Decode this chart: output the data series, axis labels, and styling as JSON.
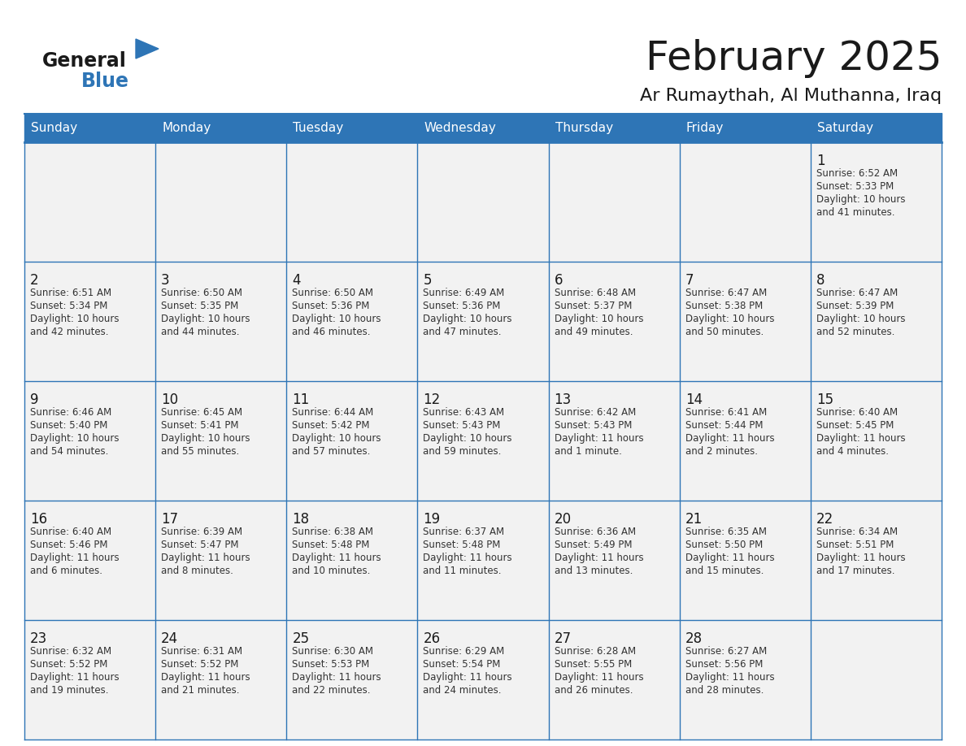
{
  "title": "February 2025",
  "subtitle": "Ar Rumaythah, Al Muthanna, Iraq",
  "header_bg": "#2E75B6",
  "header_text": "#FFFFFF",
  "cell_bg": "#F2F2F2",
  "day_headers": [
    "Sunday",
    "Monday",
    "Tuesday",
    "Wednesday",
    "Thursday",
    "Friday",
    "Saturday"
  ],
  "days": [
    {
      "day": 1,
      "col": 6,
      "row": 0,
      "sunrise": "6:52 AM",
      "sunset": "5:33 PM",
      "daylight": "10 hours and 41 minutes."
    },
    {
      "day": 2,
      "col": 0,
      "row": 1,
      "sunrise": "6:51 AM",
      "sunset": "5:34 PM",
      "daylight": "10 hours and 42 minutes."
    },
    {
      "day": 3,
      "col": 1,
      "row": 1,
      "sunrise": "6:50 AM",
      "sunset": "5:35 PM",
      "daylight": "10 hours and 44 minutes."
    },
    {
      "day": 4,
      "col": 2,
      "row": 1,
      "sunrise": "6:50 AM",
      "sunset": "5:36 PM",
      "daylight": "10 hours and 46 minutes."
    },
    {
      "day": 5,
      "col": 3,
      "row": 1,
      "sunrise": "6:49 AM",
      "sunset": "5:36 PM",
      "daylight": "10 hours and 47 minutes."
    },
    {
      "day": 6,
      "col": 4,
      "row": 1,
      "sunrise": "6:48 AM",
      "sunset": "5:37 PM",
      "daylight": "10 hours and 49 minutes."
    },
    {
      "day": 7,
      "col": 5,
      "row": 1,
      "sunrise": "6:47 AM",
      "sunset": "5:38 PM",
      "daylight": "10 hours and 50 minutes."
    },
    {
      "day": 8,
      "col": 6,
      "row": 1,
      "sunrise": "6:47 AM",
      "sunset": "5:39 PM",
      "daylight": "10 hours and 52 minutes."
    },
    {
      "day": 9,
      "col": 0,
      "row": 2,
      "sunrise": "6:46 AM",
      "sunset": "5:40 PM",
      "daylight": "10 hours and 54 minutes."
    },
    {
      "day": 10,
      "col": 1,
      "row": 2,
      "sunrise": "6:45 AM",
      "sunset": "5:41 PM",
      "daylight": "10 hours and 55 minutes."
    },
    {
      "day": 11,
      "col": 2,
      "row": 2,
      "sunrise": "6:44 AM",
      "sunset": "5:42 PM",
      "daylight": "10 hours and 57 minutes."
    },
    {
      "day": 12,
      "col": 3,
      "row": 2,
      "sunrise": "6:43 AM",
      "sunset": "5:43 PM",
      "daylight": "10 hours and 59 minutes."
    },
    {
      "day": 13,
      "col": 4,
      "row": 2,
      "sunrise": "6:42 AM",
      "sunset": "5:43 PM",
      "daylight": "11 hours and 1 minute."
    },
    {
      "day": 14,
      "col": 5,
      "row": 2,
      "sunrise": "6:41 AM",
      "sunset": "5:44 PM",
      "daylight": "11 hours and 2 minutes."
    },
    {
      "day": 15,
      "col": 6,
      "row": 2,
      "sunrise": "6:40 AM",
      "sunset": "5:45 PM",
      "daylight": "11 hours and 4 minutes."
    },
    {
      "day": 16,
      "col": 0,
      "row": 3,
      "sunrise": "6:40 AM",
      "sunset": "5:46 PM",
      "daylight": "11 hours and 6 minutes."
    },
    {
      "day": 17,
      "col": 1,
      "row": 3,
      "sunrise": "6:39 AM",
      "sunset": "5:47 PM",
      "daylight": "11 hours and 8 minutes."
    },
    {
      "day": 18,
      "col": 2,
      "row": 3,
      "sunrise": "6:38 AM",
      "sunset": "5:48 PM",
      "daylight": "11 hours and 10 minutes."
    },
    {
      "day": 19,
      "col": 3,
      "row": 3,
      "sunrise": "6:37 AM",
      "sunset": "5:48 PM",
      "daylight": "11 hours and 11 minutes."
    },
    {
      "day": 20,
      "col": 4,
      "row": 3,
      "sunrise": "6:36 AM",
      "sunset": "5:49 PM",
      "daylight": "11 hours and 13 minutes."
    },
    {
      "day": 21,
      "col": 5,
      "row": 3,
      "sunrise": "6:35 AM",
      "sunset": "5:50 PM",
      "daylight": "11 hours and 15 minutes."
    },
    {
      "day": 22,
      "col": 6,
      "row": 3,
      "sunrise": "6:34 AM",
      "sunset": "5:51 PM",
      "daylight": "11 hours and 17 minutes."
    },
    {
      "day": 23,
      "col": 0,
      "row": 4,
      "sunrise": "6:32 AM",
      "sunset": "5:52 PM",
      "daylight": "11 hours and 19 minutes."
    },
    {
      "day": 24,
      "col": 1,
      "row": 4,
      "sunrise": "6:31 AM",
      "sunset": "5:52 PM",
      "daylight": "11 hours and 21 minutes."
    },
    {
      "day": 25,
      "col": 2,
      "row": 4,
      "sunrise": "6:30 AM",
      "sunset": "5:53 PM",
      "daylight": "11 hours and 22 minutes."
    },
    {
      "day": 26,
      "col": 3,
      "row": 4,
      "sunrise": "6:29 AM",
      "sunset": "5:54 PM",
      "daylight": "11 hours and 24 minutes."
    },
    {
      "day": 27,
      "col": 4,
      "row": 4,
      "sunrise": "6:28 AM",
      "sunset": "5:55 PM",
      "daylight": "11 hours and 26 minutes."
    },
    {
      "day": 28,
      "col": 5,
      "row": 4,
      "sunrise": "6:27 AM",
      "sunset": "5:56 PM",
      "daylight": "11 hours and 28 minutes."
    }
  ],
  "num_rows": 5,
  "num_cols": 7,
  "line_color": "#2E75B6",
  "day_number_color": "#1a1a1a",
  "text_color": "#333333",
  "title_fontsize": 36,
  "subtitle_fontsize": 16,
  "header_fontsize": 11,
  "day_num_fontsize": 12,
  "cell_text_fontsize": 8.5
}
